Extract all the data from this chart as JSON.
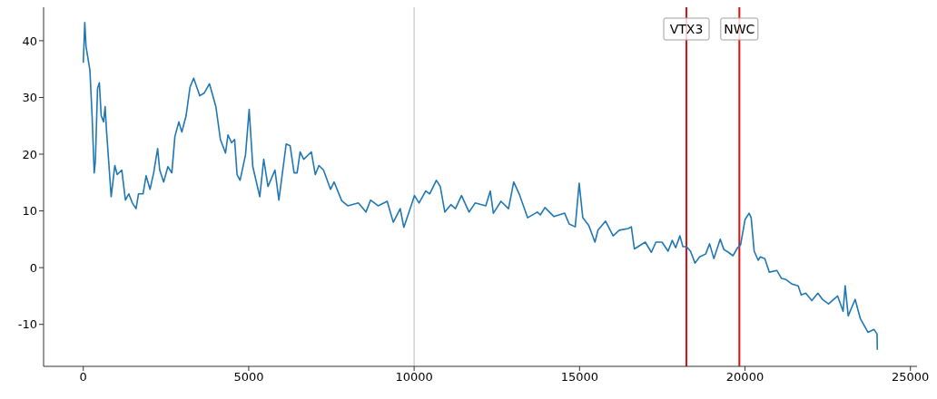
{
  "chart_data": {
    "type": "line",
    "x": [
      0,
      45,
      83,
      200,
      266,
      330,
      366,
      431,
      486,
      541,
      614,
      660,
      696,
      843,
      953,
      1026,
      1164,
      1274,
      1375,
      1485,
      1595,
      1669,
      1806,
      1898,
      2017,
      2127,
      2247,
      2310,
      2429,
      2558,
      2676,
      2769,
      2888,
      2979,
      3108,
      3226,
      3336,
      3520,
      3658,
      3815,
      4007,
      4144,
      4298,
      4373,
      4483,
      4574,
      4648,
      4739,
      4904,
      5014,
      5124,
      5335,
      5454,
      5583,
      5794,
      5912,
      6133,
      6252,
      6372,
      6463,
      6554,
      6664,
      6894,
      7013,
      7123,
      7261,
      7472,
      7582,
      7811,
      7995,
      8314,
      8544,
      8682,
      8911,
      9186,
      9370,
      9579,
      9689,
      10011,
      10149,
      10350,
      10470,
      10671,
      10790,
      10928,
      11111,
      11249,
      11432,
      11661,
      11844,
      12165,
      12302,
      12395,
      12624,
      12853,
      13010,
      13175,
      13430,
      13724,
      13815,
      13953,
      14228,
      14549,
      14686,
      14870,
      14988,
      15098,
      15281,
      15465,
      15557,
      15786,
      16015,
      16198,
      16473,
      16565,
      16657,
      16986,
      17170,
      17308,
      17492,
      17675,
      17802,
      17905,
      18033,
      18124,
      18234,
      18353,
      18491,
      18628,
      18812,
      18930,
      19059,
      19252,
      19362,
      19499,
      19637,
      19774,
      19866,
      20003,
      20124,
      20187,
      20278,
      20399,
      20462,
      20600,
      20737,
      20966,
      21104,
      21241,
      21425,
      21608,
      21700,
      21837,
      22021,
      22204,
      22342,
      22525,
      22800,
      22965,
      23028,
      23120,
      23212,
      23331,
      23487,
      23716,
      23900,
      23992,
      24000
    ],
    "series": [
      {
        "color": "#1f77b4",
        "values": [
          36.1,
          43.2,
          39,
          34.8,
          26.8,
          16.7,
          18.8,
          31.6,
          32.6,
          26.8,
          25.7,
          28.4,
          24.7,
          12.5,
          18,
          16.4,
          17.2,
          11.9,
          13,
          11.4,
          10.4,
          13,
          13,
          16.2,
          13.8,
          16.7,
          21,
          17.2,
          15.1,
          17.8,
          16.7,
          23.1,
          25.7,
          23.9,
          26.8,
          31.8,
          33.4,
          30.3,
          30.8,
          32.4,
          28.4,
          22.6,
          20.2,
          23.4,
          22,
          22.6,
          16.4,
          15.4,
          19.9,
          27.9,
          17.8,
          12.5,
          19.1,
          14.3,
          17.2,
          11.9,
          21.8,
          21.5,
          16.7,
          16.7,
          20.4,
          19.1,
          20.4,
          16.4,
          18,
          17.2,
          13.8,
          15.1,
          11.8,
          10.9,
          11.4,
          9.8,
          11.9,
          10.9,
          11.7,
          8,
          10.4,
          7.1,
          12.7,
          11.4,
          13.5,
          13,
          15.4,
          14.3,
          9.8,
          11.1,
          10.4,
          12.7,
          9.8,
          11.4,
          10.9,
          13.5,
          9.6,
          11.7,
          10.4,
          15.1,
          13,
          8.8,
          9.8,
          9.3,
          10.6,
          9,
          9.6,
          7.7,
          7.2,
          14.9,
          8.8,
          7.4,
          4.5,
          6.6,
          8.2,
          5.6,
          6.6,
          6.9,
          7.2,
          3.3,
          4.5,
          2.7,
          4.5,
          4.5,
          2.9,
          4.8,
          3.5,
          5.6,
          3.7,
          3.7,
          2.9,
          0.8,
          1.9,
          2.4,
          4.2,
          1.6,
          5,
          3.2,
          2.7,
          2.1,
          3.5,
          4,
          8.5,
          9.6,
          8.8,
          2.9,
          1.3,
          1.9,
          1.6,
          -0.8,
          -0.5,
          -1.9,
          -2.1,
          -2.9,
          -3.2,
          -4.8,
          -4.5,
          -5.8,
          -4.5,
          -5.6,
          -6.4,
          -5,
          -7.7,
          -3.2,
          -8.5,
          -7.2,
          -5.6,
          -9,
          -11.4,
          -10.9,
          -11.7,
          -14.5
        ]
      }
    ],
    "xlim": [
      -1200,
      25200
    ],
    "xticks": [
      0,
      5000,
      10000,
      15000,
      20000,
      25000
    ],
    "ylim": [
      -17.4,
      45.9
    ],
    "yticks": [
      -10,
      0,
      10,
      20,
      30,
      40
    ],
    "grid": false,
    "legend": false,
    "marker": "none",
    "line_style": "solid",
    "ref_lines": [
      {
        "axis": "x",
        "value": 10000,
        "color": "#c8c8c8"
      },
      {
        "axis": "x",
        "value": 18230,
        "label": "VTX3",
        "color": "#e01010"
      },
      {
        "axis": "x",
        "value": 19830,
        "label": "NWC",
        "color": "#e01010"
      }
    ]
  }
}
